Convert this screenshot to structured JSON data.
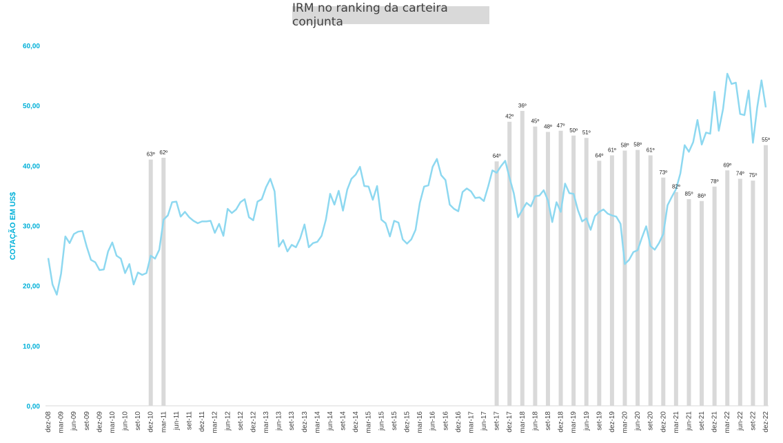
{
  "chart_data": {
    "type": "bar",
    "title": "IRM no ranking da carteira conjunta",
    "ylabel": "COTAÇÃO EM US$",
    "xlabel": "",
    "ylim": [
      0,
      60
    ],
    "grid": false,
    "y_ticks": [
      "0,00",
      "10,00",
      "20,00",
      "30,00",
      "40,00",
      "50,00",
      "60,00"
    ],
    "x_tick_labels": [
      "dez-08",
      "mar-09",
      "jun-09",
      "set-09",
      "dez-09",
      "mar-10",
      "jun-10",
      "set-10",
      "dez-10",
      "mar-11",
      "jun-11",
      "set-11",
      "dez-11",
      "mar-12",
      "jun-12",
      "set-12",
      "dez-12",
      "mar-13",
      "jun-13",
      "set-13",
      "dez-13",
      "mar-14",
      "jun-14",
      "set-14",
      "dez-14",
      "mar-15",
      "jun-15",
      "set-15",
      "dez-15",
      "mar-16",
      "jun-16",
      "set-16",
      "dez-16",
      "mar-17",
      "jun-17",
      "set-17",
      "dez-17",
      "mar-18",
      "jun-18",
      "set-18",
      "dez-18",
      "mar-19",
      "jun-19",
      "set-19",
      "dez-19",
      "mar-20",
      "jun-20",
      "set-20",
      "dez-20",
      "mar-21",
      "jun-21",
      "set-21",
      "dez-21",
      "mar-22",
      "jun-22",
      "set-22",
      "dez-22"
    ],
    "colors": {
      "line": "#8dd8f0",
      "bars": "#d9d9d9",
      "axis_text": "#00b0d8"
    },
    "bars": [
      {
        "x": "dez-10",
        "value": 41.0,
        "label": "63º"
      },
      {
        "x": "mar-11",
        "value": 41.3,
        "label": "62º"
      },
      {
        "x": "set-17",
        "value": 40.7,
        "label": "64º"
      },
      {
        "x": "dez-17",
        "value": 47.3,
        "label": "42º"
      },
      {
        "x": "mar-18",
        "value": 49.1,
        "label": "36º"
      },
      {
        "x": "jun-18",
        "value": 46.5,
        "label": "45º"
      },
      {
        "x": "set-18",
        "value": 45.6,
        "label": "48º"
      },
      {
        "x": "dez-18",
        "value": 45.8,
        "label": "47º"
      },
      {
        "x": "mar-19",
        "value": 45.0,
        "label": "50º"
      },
      {
        "x": "jun-19",
        "value": 44.6,
        "label": "51º"
      },
      {
        "x": "set-19",
        "value": 40.8,
        "label": "64º"
      },
      {
        "x": "dez-19",
        "value": 41.7,
        "label": "61º"
      },
      {
        "x": "mar-20",
        "value": 42.5,
        "label": "58º"
      },
      {
        "x": "jun-20",
        "value": 42.6,
        "label": "58º"
      },
      {
        "x": "set-20",
        "value": 41.7,
        "label": "61º"
      },
      {
        "x": "dez-20",
        "value": 38.0,
        "label": "73º"
      },
      {
        "x": "mar-21",
        "value": 35.6,
        "label": "82º"
      },
      {
        "x": "jun-21",
        "value": 34.4,
        "label": "85º"
      },
      {
        "x": "set-21",
        "value": 34.1,
        "label": "86º"
      },
      {
        "x": "dez-21",
        "value": 36.5,
        "label": "78º"
      },
      {
        "x": "mar-22",
        "value": 39.2,
        "label": "69º"
      },
      {
        "x": "jun-22",
        "value": 37.8,
        "label": "74º"
      },
      {
        "x": "set-22",
        "value": 37.5,
        "label": "75º"
      },
      {
        "x": "dez-22",
        "value": 43.4,
        "label": "55º"
      }
    ],
    "line_values": [
      24.6,
      20.2,
      18.5,
      22.0,
      28.2,
      27.1,
      28.6,
      29.0,
      29.1,
      26.5,
      24.3,
      23.9,
      22.6,
      22.7,
      25.7,
      27.2,
      25.0,
      24.5,
      22.1,
      23.6,
      20.2,
      22.2,
      21.8,
      22.1,
      25.0,
      24.5,
      26.0,
      31.0,
      31.7,
      33.9,
      34.0,
      31.5,
      32.3,
      31.4,
      30.8,
      30.4,
      30.7,
      30.7,
      30.8,
      28.8,
      30.3,
      28.3,
      32.8,
      32.1,
      32.7,
      33.9,
      34.4,
      31.4,
      30.9,
      34.0,
      34.4,
      36.4,
      37.8,
      35.7,
      26.5,
      27.6,
      25.7,
      26.8,
      26.4,
      27.9,
      30.2,
      26.4,
      27.1,
      27.3,
      28.3,
      31.0,
      35.3,
      33.5,
      35.8,
      32.5,
      36.0,
      37.8,
      38.5,
      39.8,
      36.6,
      36.5,
      34.3,
      36.6,
      31.0,
      30.4,
      28.2,
      30.8,
      30.5,
      27.7,
      27.0,
      27.7,
      29.3,
      33.8,
      36.5,
      36.7,
      39.8,
      41.1,
      38.4,
      37.6,
      33.5,
      32.8,
      32.4,
      35.6,
      36.2,
      35.7,
      34.6,
      34.7,
      34.1,
      36.5,
      39.2,
      38.8,
      39.9,
      40.8,
      38.0,
      35.4,
      31.4,
      32.6,
      33.8,
      33.2,
      34.9,
      35.0,
      35.9,
      34.2,
      30.6,
      33.9,
      32.3,
      37.0,
      35.4,
      35.3,
      32.6,
      30.7,
      31.2,
      29.3,
      31.6,
      32.3,
      32.7,
      32.0,
      31.7,
      31.5,
      30.3,
      23.6,
      24.3,
      25.6,
      25.9,
      28.0,
      29.9,
      26.6,
      26.0,
      27.1,
      28.6,
      33.4,
      34.8,
      36.1,
      38.7,
      43.4,
      42.3,
      43.9,
      47.6,
      43.5,
      45.5,
      45.3,
      52.3,
      45.8,
      49.4,
      55.3,
      53.6,
      53.8,
      48.6,
      48.4,
      52.5,
      43.8,
      49.7,
      54.2,
      49.7
    ]
  }
}
